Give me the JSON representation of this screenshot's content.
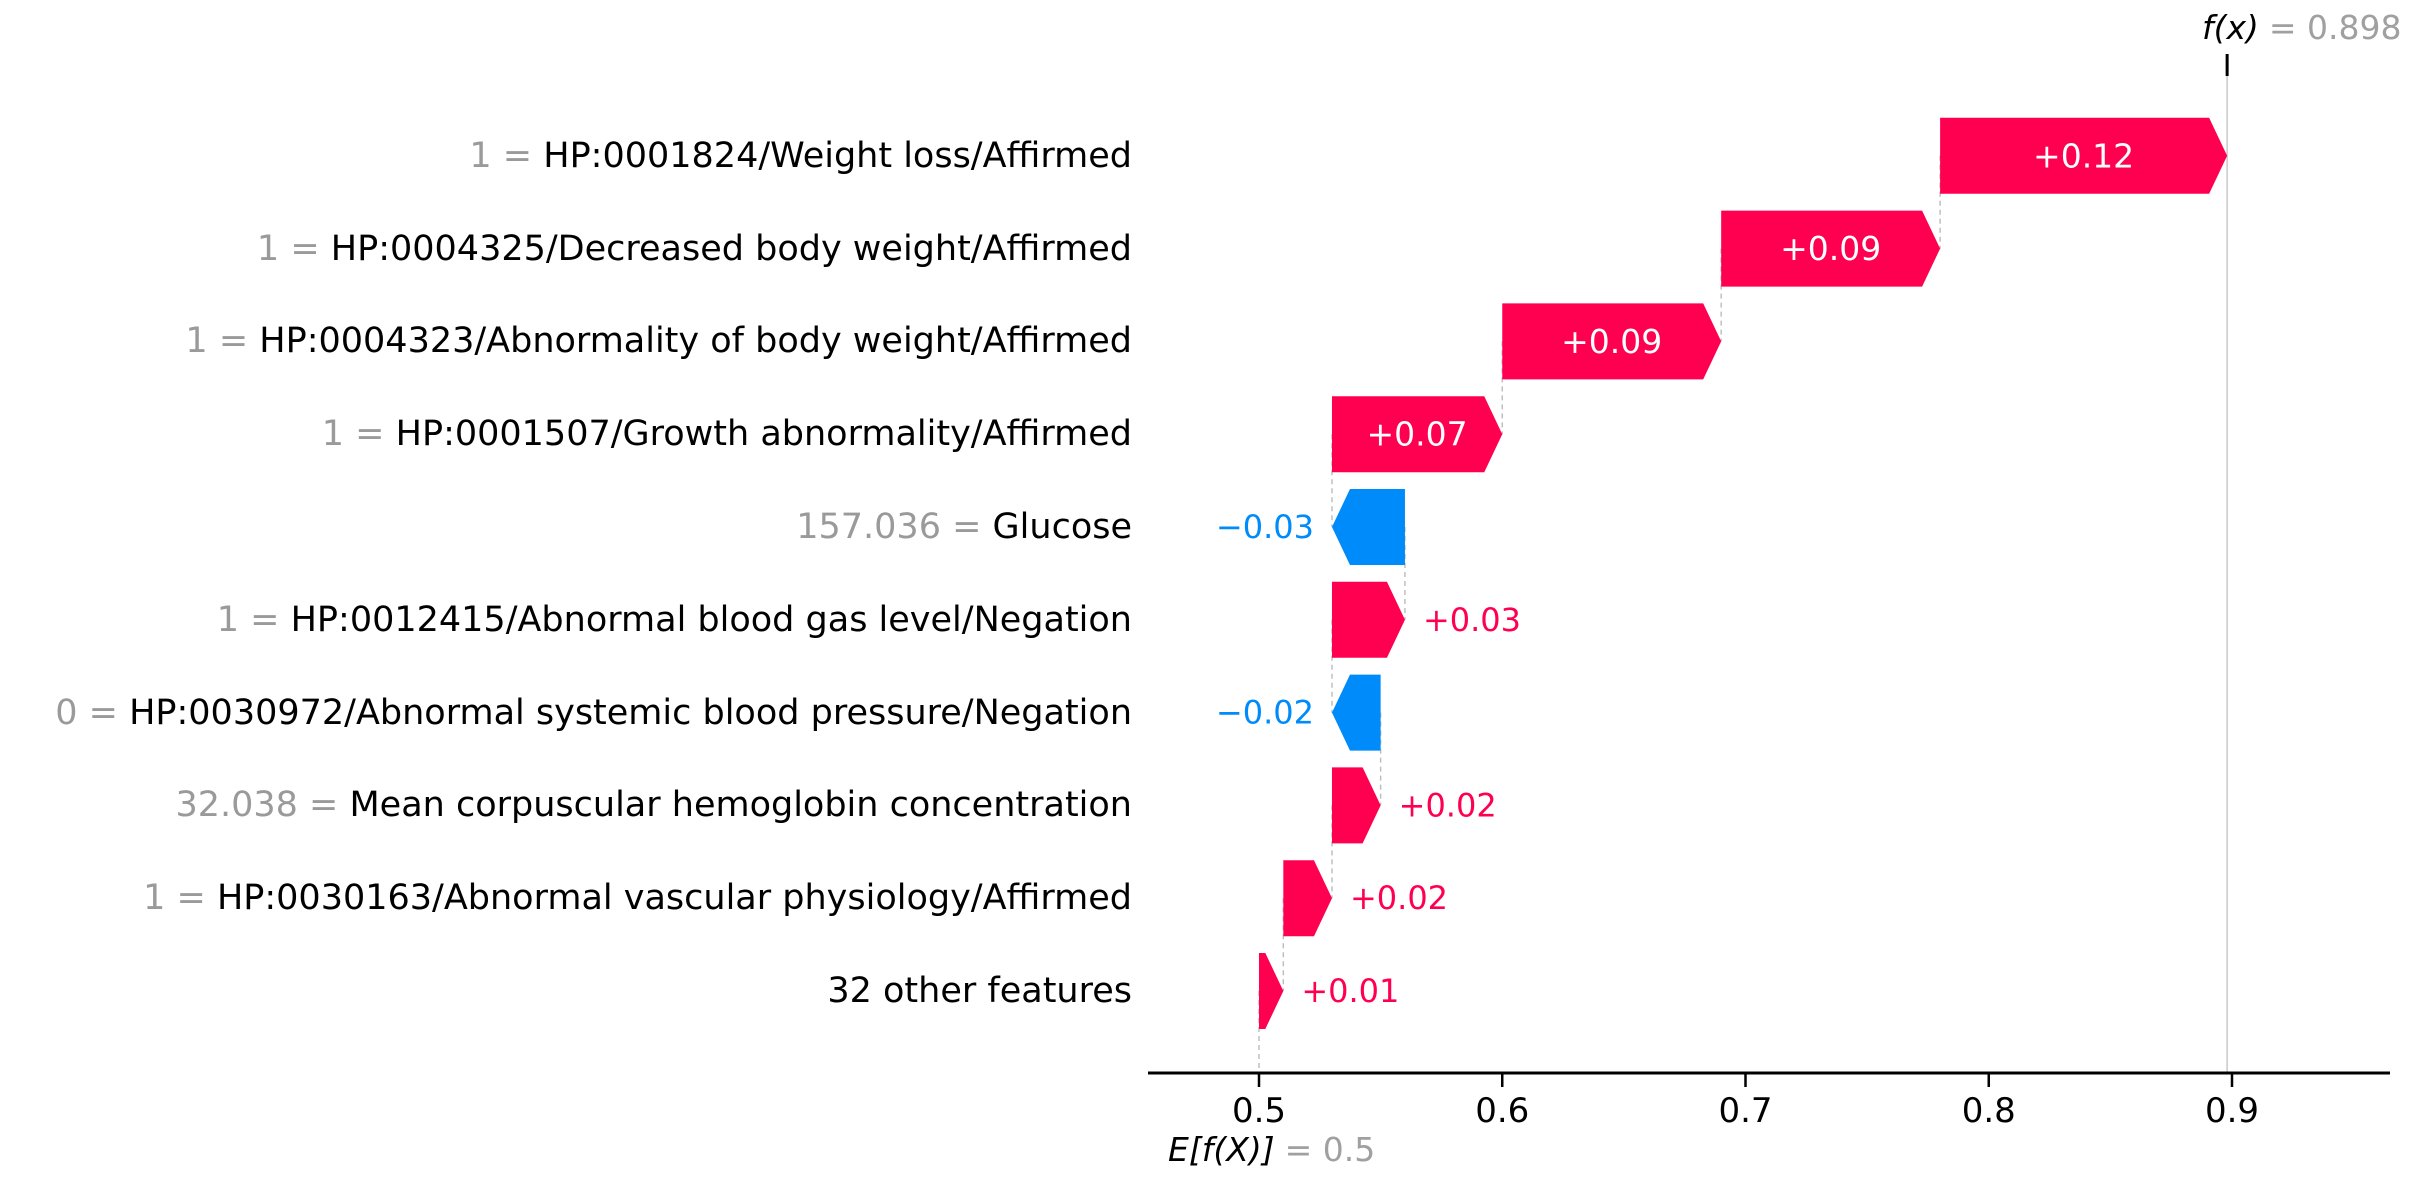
{
  "chart_data": {
    "type": "waterfall",
    "library_style": "shap-waterfall",
    "title": {
      "fx_label": "f(x)",
      "fx_value_text": "= 0.898"
    },
    "base": {
      "label": "E[f(X)]",
      "value_text": "= 0.5",
      "value": 0.5
    },
    "fx_value": 0.898,
    "x_axis": {
      "ticks": [
        0.5,
        0.6,
        0.7,
        0.8,
        0.9
      ],
      "tick_labels": [
        "0.5",
        "0.6",
        "0.7",
        "0.8",
        "0.9"
      ],
      "range_min": 0.455,
      "range_max": 0.965,
      "grid": false
    },
    "colors": {
      "positive": "#ff0051",
      "negative": "#008bfb",
      "muted_text": "#9a9a9a",
      "connector": "#bbbbbb",
      "fx_line": "#cccccc",
      "axis": "#000000"
    },
    "legend_position": "none",
    "features": [
      {
        "prefix": "1 = ",
        "name": "HP:0001824/Weight loss/Affirmed",
        "shap": 0.12,
        "shap_label": "+0.12",
        "start": 0.78,
        "end": 0.898,
        "direction": "positive",
        "label_placement": "inside"
      },
      {
        "prefix": "1 = ",
        "name": "HP:0004325/Decreased body weight/Affirmed",
        "shap": 0.09,
        "shap_label": "+0.09",
        "start": 0.69,
        "end": 0.78,
        "direction": "positive",
        "label_placement": "inside"
      },
      {
        "prefix": "1 = ",
        "name": "HP:0004323/Abnormality of body weight/Affirmed",
        "shap": 0.09,
        "shap_label": "+0.09",
        "start": 0.6,
        "end": 0.69,
        "direction": "positive",
        "label_placement": "inside"
      },
      {
        "prefix": "1 = ",
        "name": "HP:0001507/Growth abnormality/Affirmed",
        "shap": 0.07,
        "shap_label": "+0.07",
        "start": 0.53,
        "end": 0.6,
        "direction": "positive",
        "label_placement": "inside"
      },
      {
        "prefix": "157.036 = ",
        "name": "Glucose",
        "shap": -0.03,
        "shap_label": "−0.03",
        "start": 0.56,
        "end": 0.53,
        "direction": "negative",
        "label_placement": "outside"
      },
      {
        "prefix": "1 = ",
        "name": "HP:0012415/Abnormal blood gas level/Negation",
        "shap": 0.03,
        "shap_label": "+0.03",
        "start": 0.53,
        "end": 0.56,
        "direction": "positive",
        "label_placement": "outside"
      },
      {
        "prefix": "0 = ",
        "name": "HP:0030972/Abnormal systemic blood pressure/Negation",
        "shap": -0.02,
        "shap_label": "−0.02",
        "start": 0.55,
        "end": 0.53,
        "direction": "negative",
        "label_placement": "outside"
      },
      {
        "prefix": "32.038 = ",
        "name": "Mean corpuscular hemoglobin concentration",
        "shap": 0.02,
        "shap_label": "+0.02",
        "start": 0.53,
        "end": 0.55,
        "direction": "positive",
        "label_placement": "outside"
      },
      {
        "prefix": "1 = ",
        "name": "HP:0030163/Abnormal vascular physiology/Affirmed",
        "shap": 0.02,
        "shap_label": "+0.02",
        "start": 0.51,
        "end": 0.53,
        "direction": "positive",
        "label_placement": "outside"
      },
      {
        "prefix": null,
        "name": "32 other features",
        "shap": 0.01,
        "shap_label": "+0.01",
        "start": 0.5,
        "end": 0.51,
        "direction": "positive",
        "label_placement": "outside"
      }
    ]
  }
}
